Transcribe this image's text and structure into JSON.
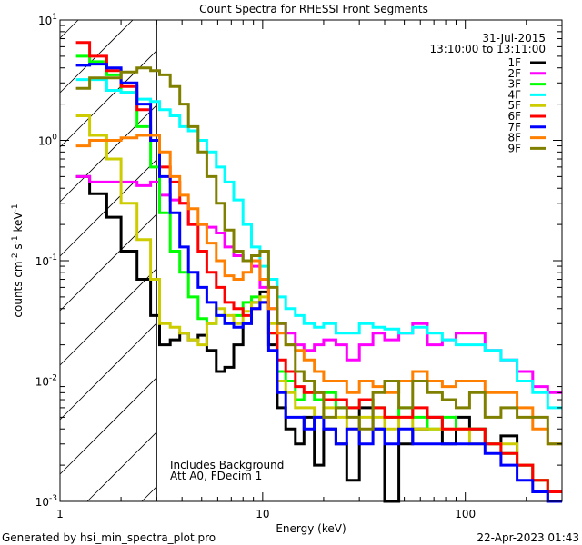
{
  "chart_data": {
    "type": "line",
    "title": "Count Spectra for RHESSI Front Segments",
    "xlabel": "Energy (keV)",
    "ylabel": {
      "base": "counts cm",
      "e1": "-2",
      "mid": " s",
      "e2": "-1",
      "mid2": " keV",
      "e3": "-1"
    },
    "xscale": "log",
    "yscale": "log",
    "xlim": [
      1,
      300
    ],
    "ylim": [
      0.001,
      10
    ],
    "x_tick_labels": [
      {
        "value": 1,
        "label": "1"
      },
      {
        "value": 10,
        "label": "10"
      },
      {
        "value": 100,
        "label": "100"
      }
    ],
    "y_tick_labels": [
      {
        "value": 10,
        "base": "10",
        "exp": "1"
      },
      {
        "value": 1,
        "base": "10",
        "exp": "0"
      },
      {
        "value": 0.1,
        "base": "10",
        "exp": "-1"
      },
      {
        "value": 0.01,
        "base": "10",
        "exp": "-2"
      },
      {
        "value": 0.001,
        "base": "10",
        "exp": "-3"
      }
    ],
    "hatched_region_upper_energy": 3,
    "date": "31-Jul-2015",
    "time_range": "13:10:00 to 13:11:00",
    "annotations": [
      "Includes Background",
      "Att A0, FDecim 1"
    ],
    "legend_placement": "top-right",
    "bin_edges": [
      1.2,
      1.4,
      1.7,
      2.0,
      2.4,
      2.8,
      3.1,
      3.5,
      3.9,
      4.3,
      4.8,
      5.3,
      5.9,
      6.5,
      7.2,
      8.0,
      8.8,
      9.7,
      10.7,
      11.8,
      13,
      14.5,
      16,
      18,
      20,
      23,
      26,
      30,
      35,
      40,
      47,
      55,
      65,
      77,
      90,
      105,
      125,
      150,
      180,
      215,
      255,
      300
    ],
    "series": [
      {
        "name": "1F",
        "color": "#000000",
        "values": [
          0.5,
          0.36,
          0.23,
          0.12,
          0.07,
          0.035,
          0.02,
          0.022,
          0.025,
          0.022,
          0.024,
          0.018,
          0.012,
          0.013,
          0.02,
          0.03,
          0.045,
          0.055,
          0.02,
          0.006,
          0.004,
          0.003,
          0.005,
          0.002,
          0.004,
          0.003,
          0.0015,
          0.006,
          0.004,
          0.0008,
          0.003,
          0.004,
          0.005,
          0.003,
          0.005,
          0.004,
          0.003,
          0.0035,
          0.002,
          0.0015,
          0.001
        ]
      },
      {
        "name": "2F",
        "color": "#ff00ff",
        "values": [
          0.5,
          0.45,
          0.45,
          0.45,
          0.42,
          0.45,
          0.35,
          0.32,
          0.3,
          0.2,
          0.2,
          0.19,
          0.17,
          0.13,
          0.11,
          0.1,
          0.09,
          0.06,
          0.04,
          0.03,
          0.025,
          0.02,
          0.018,
          0.02,
          0.022,
          0.02,
          0.015,
          0.02,
          0.025,
          0.022,
          0.025,
          0.03,
          0.02,
          0.022,
          0.025,
          0.025,
          0.018,
          0.015,
          0.012,
          0.009,
          0.008
        ]
      },
      {
        "name": "3F",
        "color": "#00ff00",
        "values": [
          5.0,
          4.5,
          3.5,
          2.5,
          1.3,
          0.6,
          0.25,
          0.12,
          0.08,
          0.05,
          0.033,
          0.03,
          0.035,
          0.03,
          0.035,
          0.045,
          0.05,
          0.045,
          0.025,
          0.012,
          0.01,
          0.007,
          0.008,
          0.007,
          0.008,
          0.006,
          0.006,
          0.007,
          0.006,
          0.005,
          0.006,
          0.005,
          0.004,
          0.005,
          0.004,
          0.004,
          0.003,
          0.0025,
          0.002,
          0.0015,
          0.0012
        ]
      },
      {
        "name": "4F",
        "color": "#00ffff",
        "values": [
          3.2,
          3.2,
          2.6,
          2.5,
          2.2,
          2.1,
          1.8,
          1.6,
          1.3,
          1.2,
          1.0,
          0.8,
          0.6,
          0.45,
          0.32,
          0.2,
          0.13,
          0.09,
          0.07,
          0.05,
          0.04,
          0.035,
          0.03,
          0.028,
          0.03,
          0.025,
          0.025,
          0.03,
          0.028,
          0.027,
          0.025,
          0.028,
          0.025,
          0.022,
          0.02,
          0.02,
          0.018,
          0.015,
          0.01,
          0.008,
          0.006
        ]
      },
      {
        "name": "5F",
        "color": "#cccc00",
        "values": [
          1.6,
          1.1,
          0.7,
          0.3,
          0.15,
          0.07,
          0.03,
          0.028,
          0.025,
          0.022,
          0.02,
          0.03,
          0.04,
          0.035,
          0.03,
          0.038,
          0.045,
          0.05,
          0.03,
          0.01,
          0.008,
          0.006,
          0.006,
          0.005,
          0.006,
          0.005,
          0.004,
          0.005,
          0.005,
          0.004,
          0.005,
          0.004,
          0.004,
          0.004,
          0.004,
          0.003,
          0.003,
          0.003,
          0.002,
          0.0015,
          0.0012
        ]
      },
      {
        "name": "6F",
        "color": "#ff0000",
        "values": [
          6.5,
          5.0,
          3.8,
          2.8,
          1.8,
          1.0,
          0.6,
          0.45,
          0.3,
          0.2,
          0.12,
          0.08,
          0.06,
          0.045,
          0.04,
          0.035,
          0.04,
          0.045,
          0.025,
          0.015,
          0.012,
          0.009,
          0.008,
          0.008,
          0.007,
          0.007,
          0.006,
          0.007,
          0.006,
          0.005,
          0.005,
          0.006,
          0.005,
          0.004,
          0.004,
          0.004,
          0.003,
          0.0025,
          0.002,
          0.0015,
          0.0012
        ]
      },
      {
        "name": "7F",
        "color": "#0000ff",
        "values": [
          4.2,
          4.3,
          4.0,
          3.0,
          2.0,
          1.0,
          0.5,
          0.25,
          0.13,
          0.08,
          0.06,
          0.045,
          0.035,
          0.03,
          0.028,
          0.03,
          0.04,
          0.045,
          0.018,
          0.008,
          0.005,
          0.005,
          0.004,
          0.005,
          0.004,
          0.003,
          0.004,
          0.003,
          0.004,
          0.003,
          0.004,
          0.003,
          0.003,
          0.003,
          0.003,
          0.003,
          0.0025,
          0.002,
          0.0015,
          0.0012,
          0.001
        ]
      },
      {
        "name": "8F",
        "color": "#ff8000",
        "values": [
          0.9,
          1.0,
          1.0,
          1.05,
          1.1,
          1.1,
          0.8,
          0.5,
          0.35,
          0.27,
          0.2,
          0.14,
          0.1,
          0.075,
          0.07,
          0.08,
          0.1,
          0.07,
          0.04,
          0.025,
          0.02,
          0.018,
          0.015,
          0.012,
          0.01,
          0.01,
          0.008,
          0.01,
          0.009,
          0.008,
          0.01,
          0.012,
          0.01,
          0.009,
          0.01,
          0.01,
          0.008,
          0.008,
          0.006,
          0.004,
          0.003
        ]
      },
      {
        "name": "9F",
        "color": "#808000",
        "values": [
          2.7,
          3.3,
          3.3,
          3.7,
          4.0,
          3.8,
          3.5,
          2.8,
          2.0,
          1.3,
          0.8,
          0.5,
          0.3,
          0.18,
          0.12,
          0.1,
          0.11,
          0.12,
          0.06,
          0.03,
          0.02,
          0.012,
          0.01,
          0.008,
          0.005,
          0.006,
          0.005,
          0.004,
          0.008,
          0.01,
          0.006,
          0.01,
          0.008,
          0.007,
          0.006,
          0.008,
          0.005,
          0.006,
          0.005,
          0.005,
          0.003
        ]
      }
    ]
  },
  "footer": {
    "generated_by": "Generated by hsi_min_spectra_plot.pro",
    "timestamp": "22-Apr-2023 01:43"
  }
}
